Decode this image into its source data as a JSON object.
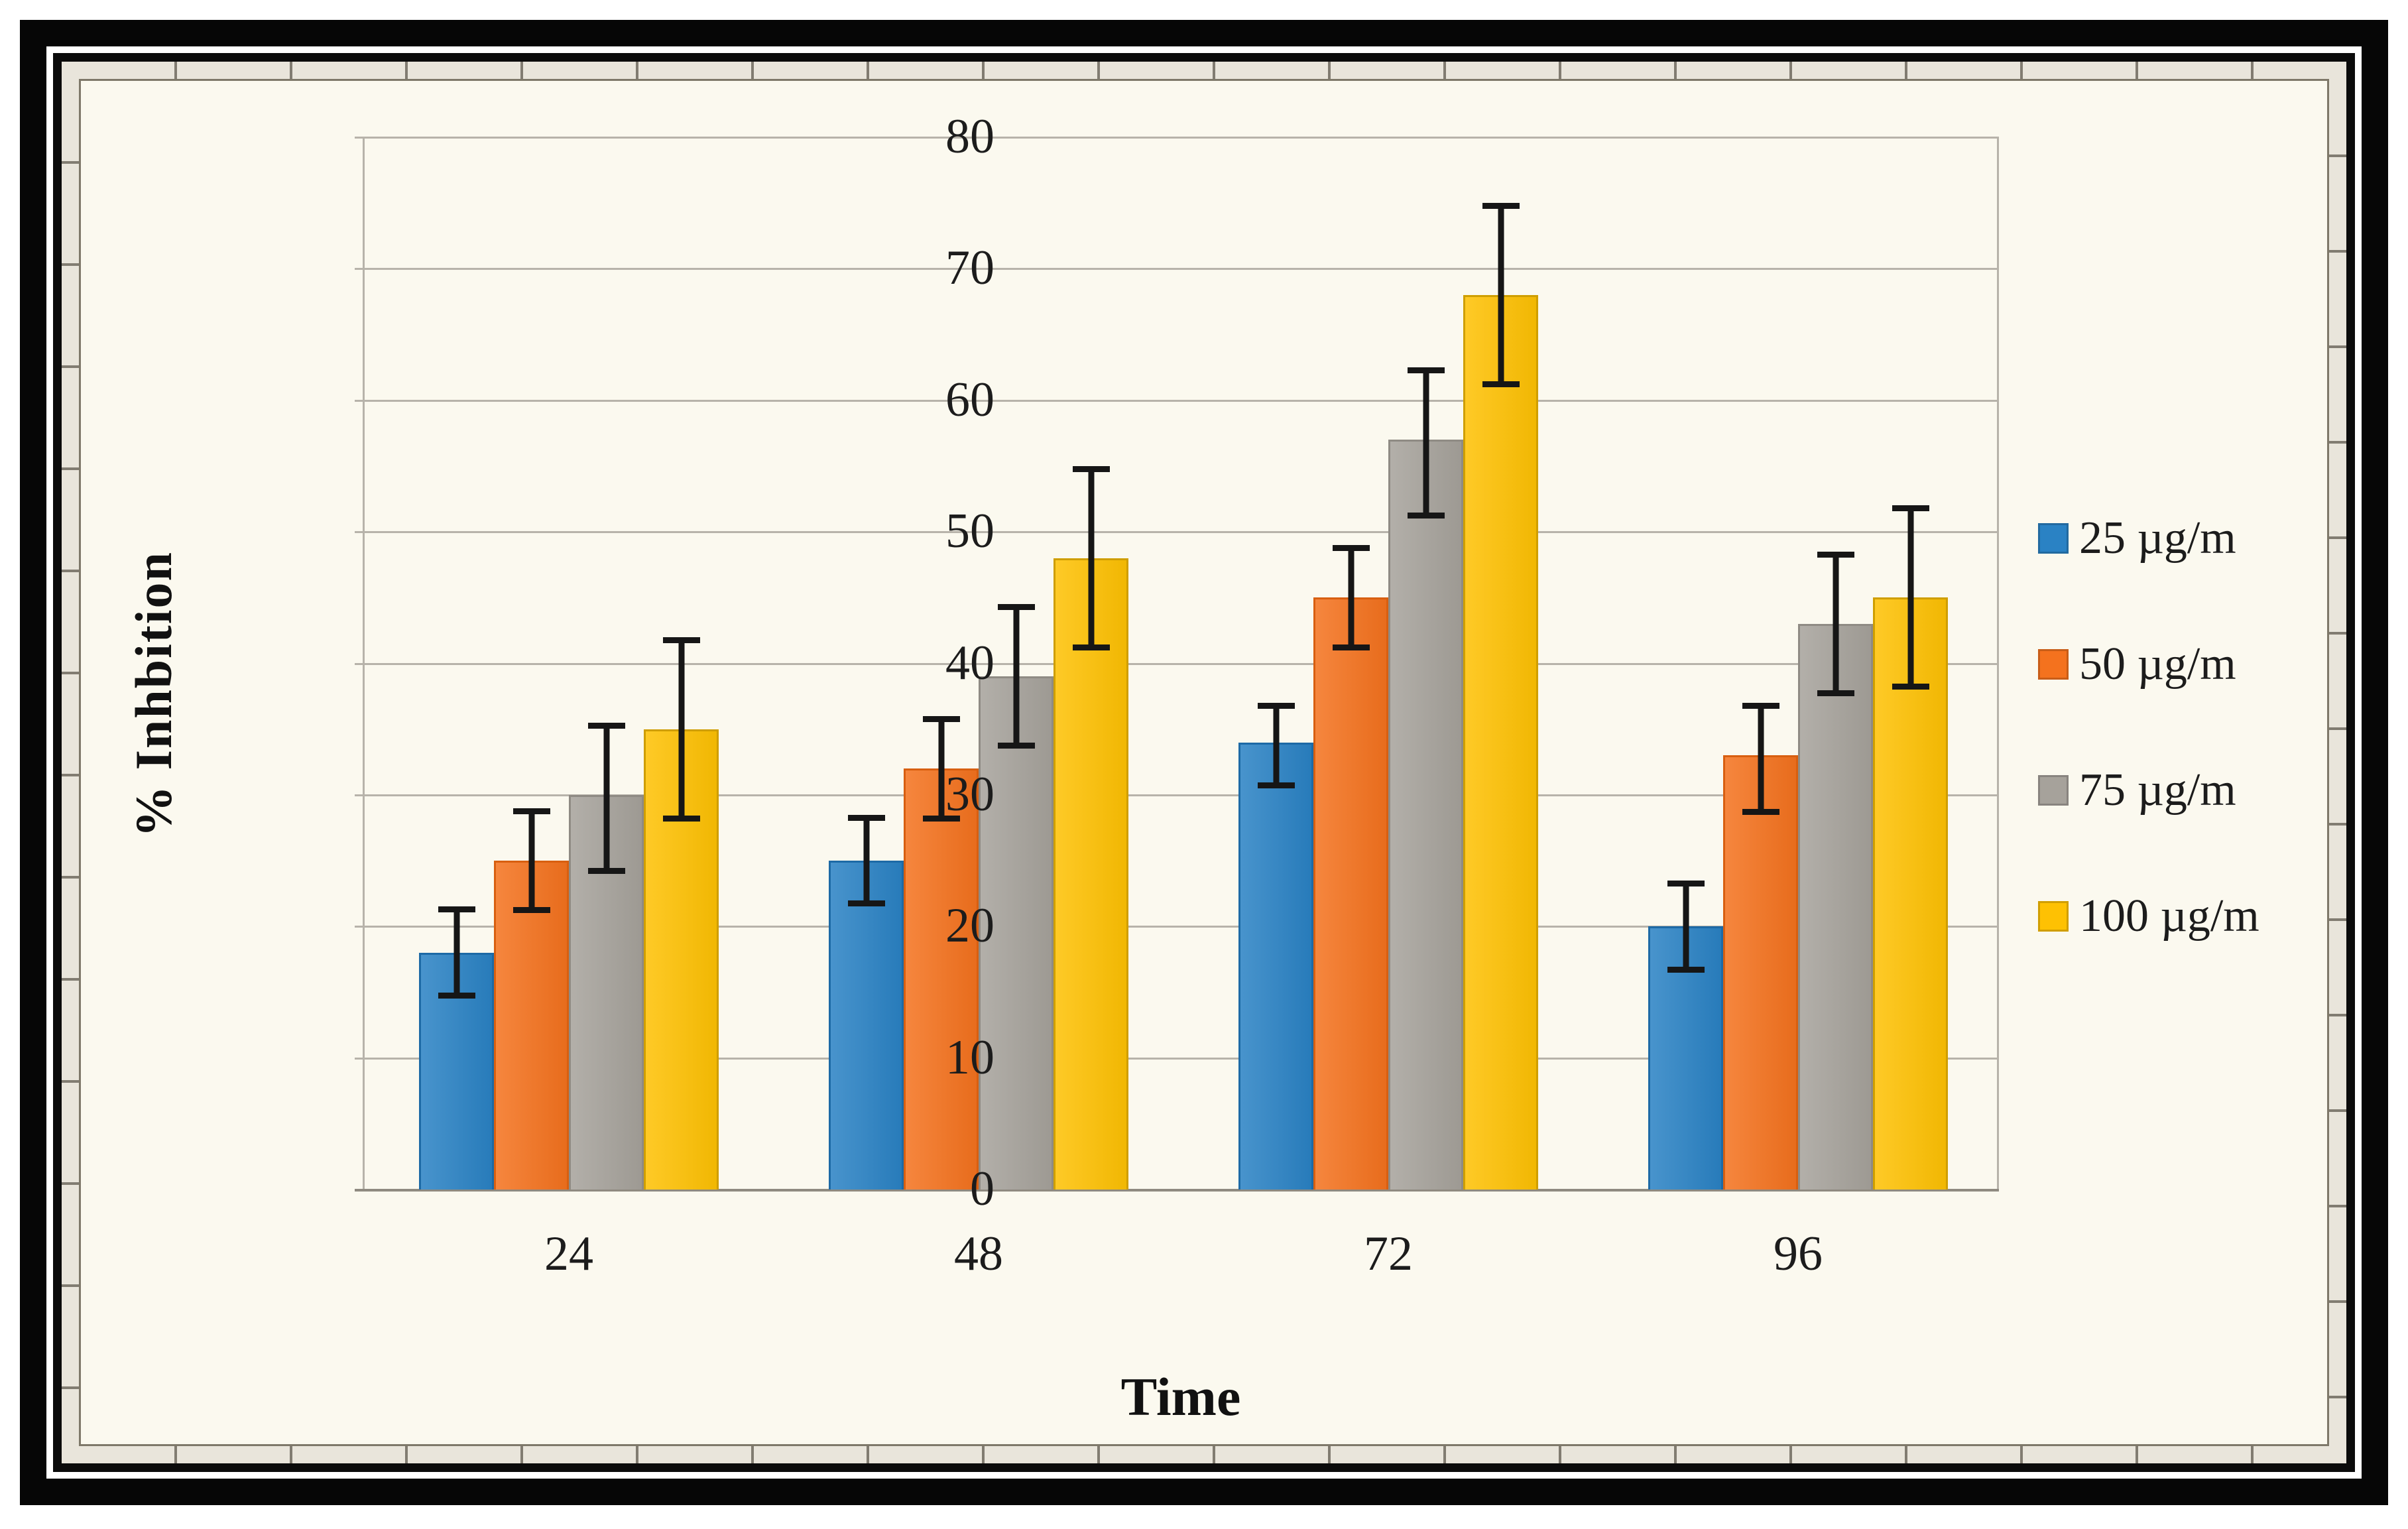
{
  "figure": {
    "background_color": "#fbf9ef",
    "frame_colors": {
      "outer_border": "#060606",
      "inner_border": "#0b0b0b",
      "mat": "#e9e5db"
    }
  },
  "chart_data": {
    "type": "bar",
    "title": "",
    "xlabel": "Time",
    "ylabel": "% Inhbition",
    "categories": [
      "24",
      "48",
      "72",
      "96"
    ],
    "yticks": [
      0,
      10,
      20,
      30,
      40,
      50,
      60,
      70,
      80
    ],
    "ylim": [
      0,
      80
    ],
    "grid": "horizontal",
    "legend_position": "right",
    "gridline_color": "#b7b3aa",
    "error_bar_color": "#161616",
    "series": [
      {
        "name": "25 µg/m",
        "color": "#2a82c4",
        "edge_color": "#1d6aa6",
        "values": [
          18,
          25,
          34,
          20
        ],
        "error_low": [
          14.5,
          21.5,
          30.5,
          16.5
        ],
        "error_high": [
          21.5,
          28.5,
          37,
          23.5
        ]
      },
      {
        "name": "50 µg/m",
        "color": "#f4721e",
        "edge_color": "#d85f10",
        "values": [
          25,
          32,
          45,
          33
        ],
        "error_low": [
          21,
          28,
          41,
          28.5
        ],
        "error_high": [
          29,
          36,
          49,
          37
        ]
      },
      {
        "name": "75 µg/m",
        "color": "#a6a29b",
        "edge_color": "#8f8b84",
        "values": [
          30,
          39,
          57,
          43
        ],
        "error_low": [
          24,
          33.5,
          51,
          37.5
        ],
        "error_high": [
          35.5,
          44.5,
          62.5,
          48.5
        ]
      },
      {
        "name": "100 µg/m",
        "color": "#fec103",
        "edge_color": "#cf9e00",
        "values": [
          35,
          48,
          68,
          45
        ],
        "error_low": [
          28,
          41,
          61,
          38
        ],
        "error_high": [
          42,
          55,
          75,
          52
        ]
      }
    ]
  }
}
